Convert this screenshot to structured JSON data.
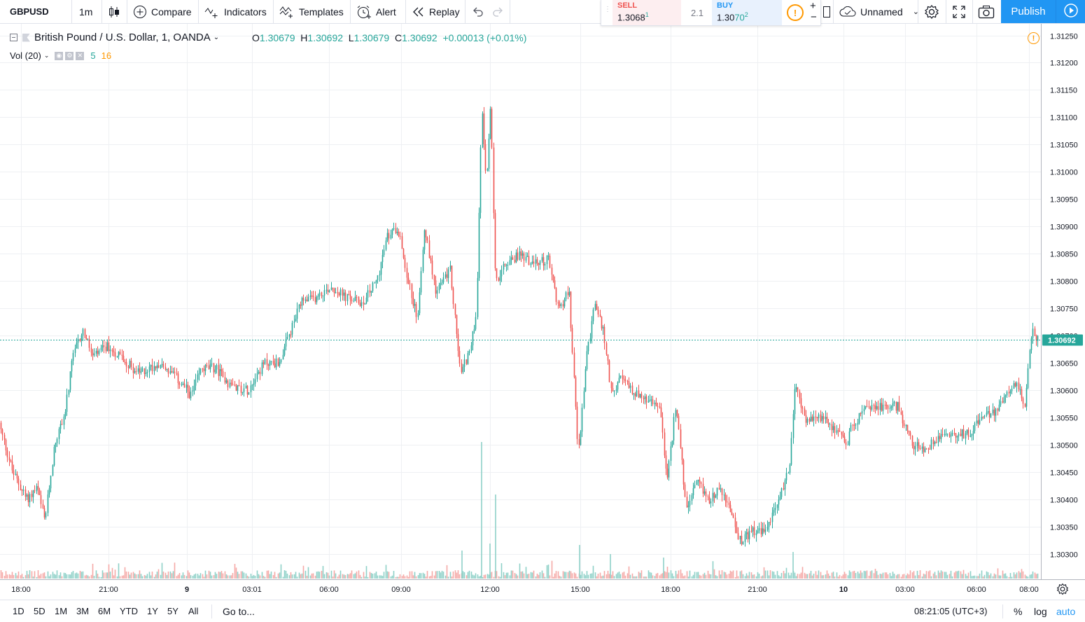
{
  "toolbar": {
    "symbol": "GBPUSD",
    "interval": "1m",
    "compare": "Compare",
    "indicators": "Indicators",
    "templates": "Templates",
    "alert": "Alert",
    "replay": "Replay",
    "layout_name": "Unnamed",
    "publish": "Publish"
  },
  "trade": {
    "sell_label": "SELL",
    "sell_price": "1.3068",
    "sell_pip": "1",
    "spread": "2.1",
    "buy_label": "BUY",
    "buy_price_main": "1.30",
    "buy_price_hl": "70",
    "buy_pip": "2",
    "info_icon": "!",
    "plus": "+",
    "minus": "−"
  },
  "legend": {
    "title": "British Pound / U.S. Dollar, 1, OANDA",
    "o_label": "O",
    "o": "1.30679",
    "h_label": "H",
    "h": "1.30692",
    "l_label": "L",
    "l": "1.30679",
    "c_label": "C",
    "c": "1.30692",
    "change": "+0.00013 (+0.01%)",
    "vol_label": "Vol (20)",
    "vol_value": "5",
    "vol_ma": "16"
  },
  "colors": {
    "up": "#26a69a",
    "down": "#ef5350",
    "vol_up": "#8fd1c8",
    "vol_down": "#f5a9a7",
    "grid": "#eef0f3",
    "accent": "#2196f3",
    "warning": "#ff9800"
  },
  "chart_data": {
    "type": "candlestick",
    "symbol": "GBPUSD",
    "interval": "1",
    "ylim": [
      1.3027,
      1.31275
    ],
    "y_ticks": [
      "1.31250",
      "1.31200",
      "1.31150",
      "1.31100",
      "1.31050",
      "1.31000",
      "1.30950",
      "1.30900",
      "1.30850",
      "1.30800",
      "1.30750",
      "1.30700",
      "1.30650",
      "1.30600",
      "1.30550",
      "1.30500",
      "1.30450",
      "1.30400",
      "1.30350",
      "1.30300"
    ],
    "x_ticks": [
      "18:00",
      "21:00",
      "9",
      "03:01",
      "06:00",
      "09:00",
      "12:00",
      "15:00",
      "18:00",
      "21:00",
      "10",
      "03:00",
      "06:00",
      "08:00"
    ],
    "last_price": "1.30692",
    "path": [
      [
        0,
        1.3054
      ],
      [
        20,
        1.3045
      ],
      [
        40,
        1.304
      ],
      [
        55,
        1.3042
      ],
      [
        66,
        1.3036
      ],
      [
        80,
        1.305
      ],
      [
        95,
        1.3056
      ],
      [
        106,
        1.3066
      ],
      [
        120,
        1.3071
      ],
      [
        135,
        1.3066
      ],
      [
        155,
        1.3068
      ],
      [
        175,
        1.3066
      ],
      [
        200,
        1.3063
      ],
      [
        230,
        1.3065
      ],
      [
        255,
        1.3062
      ],
      [
        275,
        1.3059
      ],
      [
        290,
        1.3064
      ],
      [
        310,
        1.3064
      ],
      [
        330,
        1.3061
      ],
      [
        355,
        1.306
      ],
      [
        380,
        1.3065
      ],
      [
        400,
        1.3065
      ],
      [
        415,
        1.307
      ],
      [
        432,
        1.3076
      ],
      [
        455,
        1.3077
      ],
      [
        475,
        1.3079
      ],
      [
        495,
        1.3077
      ],
      [
        520,
        1.3076
      ],
      [
        540,
        1.308
      ],
      [
        555,
        1.3088
      ],
      [
        570,
        1.309
      ],
      [
        585,
        1.308
      ],
      [
        598,
        1.3073
      ],
      [
        608,
        1.309
      ],
      [
        625,
        1.3078
      ],
      [
        645,
        1.3082
      ],
      [
        660,
        1.3063
      ],
      [
        675,
        1.3068
      ],
      [
        683,
        1.3075
      ],
      [
        690,
        1.3112
      ],
      [
        697,
        1.3098
      ],
      [
        703,
        1.3112
      ],
      [
        710,
        1.308
      ],
      [
        725,
        1.3083
      ],
      [
        745,
        1.3085
      ],
      [
        765,
        1.3083
      ],
      [
        785,
        1.3084
      ],
      [
        800,
        1.3075
      ],
      [
        815,
        1.3078
      ],
      [
        828,
        1.3048
      ],
      [
        840,
        1.3066
      ],
      [
        852,
        1.3076
      ],
      [
        865,
        1.307
      ],
      [
        875,
        1.306
      ],
      [
        890,
        1.3062
      ],
      [
        905,
        1.306
      ],
      [
        925,
        1.3058
      ],
      [
        945,
        1.3057
      ],
      [
        955,
        1.3043
      ],
      [
        968,
        1.3058
      ],
      [
        982,
        1.3038
      ],
      [
        998,
        1.3043
      ],
      [
        1015,
        1.304
      ],
      [
        1030,
        1.3042
      ],
      [
        1045,
        1.3038
      ],
      [
        1060,
        1.3032
      ],
      [
        1075,
        1.3034
      ],
      [
        1095,
        1.3034
      ],
      [
        1115,
        1.304
      ],
      [
        1130,
        1.3046
      ],
      [
        1138,
        1.3061
      ],
      [
        1155,
        1.3054
      ],
      [
        1175,
        1.3055
      ],
      [
        1195,
        1.3053
      ],
      [
        1212,
        1.305
      ],
      [
        1220,
        1.3054
      ],
      [
        1245,
        1.3057
      ],
      [
        1265,
        1.3057
      ],
      [
        1285,
        1.3057
      ],
      [
        1305,
        1.305
      ],
      [
        1325,
        1.3049
      ],
      [
        1345,
        1.3052
      ],
      [
        1365,
        1.3052
      ],
      [
        1385,
        1.3052
      ],
      [
        1405,
        1.3055
      ],
      [
        1425,
        1.3056
      ],
      [
        1440,
        1.306
      ],
      [
        1455,
        1.3061
      ],
      [
        1466,
        1.3057
      ],
      [
        1472,
        1.3065
      ],
      [
        1477,
        1.3072
      ],
      [
        1483,
        1.30692
      ]
    ],
    "volume_spikes": [
      [
        688,
        195
      ],
      [
        708,
        120
      ],
      [
        700,
        50
      ],
      [
        660,
        40
      ],
      [
        828,
        48
      ],
      [
        1133,
        38
      ],
      [
        872,
        35
      ],
      [
        948,
        30
      ]
    ]
  },
  "bottom": {
    "ranges": [
      "1D",
      "5D",
      "1M",
      "3M",
      "6M",
      "YTD",
      "1Y",
      "5Y",
      "All"
    ],
    "goto": "Go to...",
    "clock": "08:21:05 (UTC+3)",
    "percent": "%",
    "log": "log",
    "auto": "auto"
  }
}
